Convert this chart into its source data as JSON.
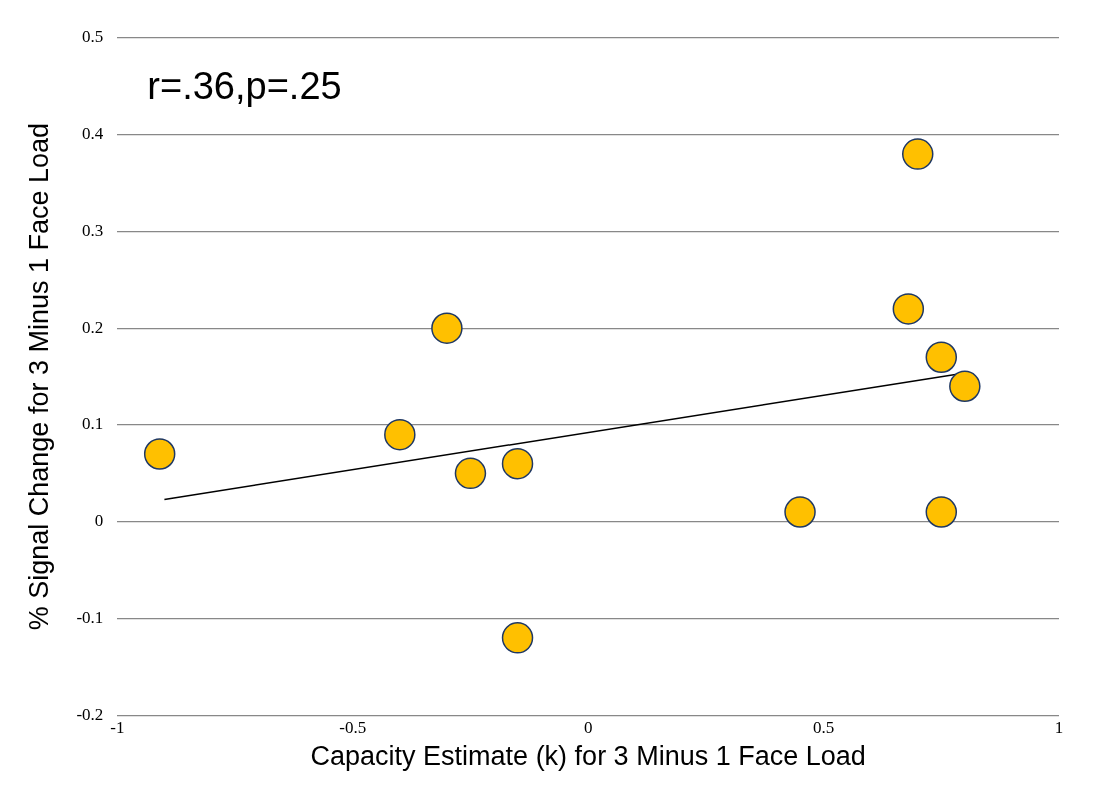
{
  "chart_data": {
    "type": "scatter",
    "xlabel": "Capacity Estimate (k) for 3 Minus 1 Face Load",
    "ylabel": "% Signal Change for 3 Minus 1 Face Load",
    "annotations": [
      "r=.36,p=.25"
    ],
    "xlim": [
      -1,
      1
    ],
    "xticks": [
      -1,
      -0.5,
      0,
      0.5,
      1
    ],
    "ylim": [
      -0.2,
      0.5
    ],
    "yticks": [
      -0.2,
      -0.1,
      0,
      0.1,
      0.2,
      0.3,
      0.4,
      0.5
    ],
    "grid": "y",
    "legend": false,
    "series": [
      {
        "type": "scatter",
        "marker": "circle",
        "color": "#ffc000",
        "x": [
          -0.91,
          -0.4,
          -0.3,
          -0.25,
          -0.15,
          -0.15,
          0.45,
          0.68,
          0.7,
          0.75,
          0.8,
          0.75
        ],
        "values": [
          0.07,
          0.09,
          0.2,
          0.05,
          0.06,
          -0.12,
          0.01,
          0.22,
          0.38,
          0.17,
          0.14,
          0.01
        ]
      },
      {
        "type": "line",
        "marker": "none",
        "color": "#000000",
        "line_style": "solid",
        "x": [
          -0.9,
          0.79
        ],
        "values": [
          0.023,
          0.153
        ]
      }
    ]
  }
}
